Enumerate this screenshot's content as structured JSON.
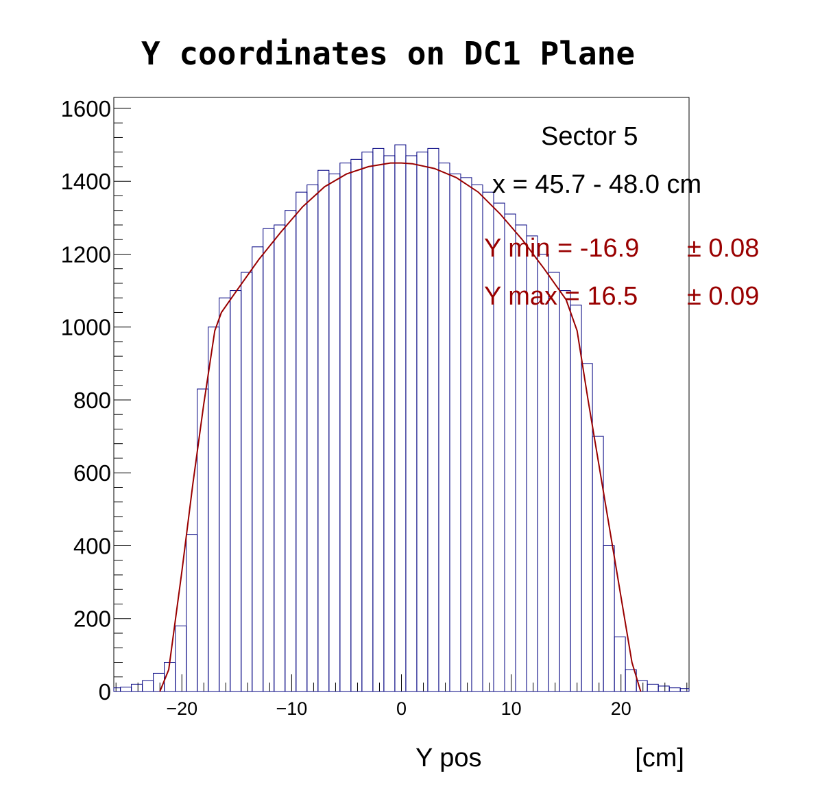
{
  "chart_data": {
    "type": "bar",
    "title": "Y coordinates on DC1 Plane",
    "xlabel": "Y pos",
    "xunit": "[cm]",
    "ylabel": "",
    "xlim": [
      -26.2,
      26.2
    ],
    "ylim": [
      0,
      1630
    ],
    "x_ticks": [
      -20,
      -10,
      0,
      10,
      20
    ],
    "x_tick_labels": [
      "−20",
      "−10",
      "0",
      "10",
      "20"
    ],
    "y_ticks": [
      0,
      200,
      400,
      600,
      800,
      1000,
      1200,
      1400,
      1600
    ],
    "y_tick_labels": [
      "0",
      "200",
      "400",
      "600",
      "800",
      "1000",
      "1200",
      "1400",
      "1600"
    ],
    "grid": false,
    "histogram": {
      "bin_width": 0.2,
      "color": "#000080",
      "x": [
        -26.1,
        -25.1,
        -24.1,
        -23.1,
        -22.1,
        -21.1,
        -20.1,
        -19.1,
        -18.1,
        -17.1,
        -16.1,
        -15.1,
        -14.1,
        -13.1,
        -12.1,
        -11.1,
        -10.1,
        -9.1,
        -8.1,
        -7.1,
        -6.1,
        -5.1,
        -4.1,
        -3.1,
        -2.1,
        -1.1,
        -0.1,
        0.9,
        1.9,
        2.9,
        3.9,
        4.9,
        5.9,
        6.9,
        7.9,
        8.9,
        9.9,
        10.9,
        11.9,
        12.9,
        13.9,
        14.9,
        15.9,
        16.9,
        17.9,
        18.9,
        19.9,
        20.9,
        21.9,
        22.9,
        23.9,
        24.9,
        25.9
      ],
      "values": [
        10,
        12,
        20,
        30,
        50,
        80,
        180,
        430,
        830,
        1000,
        1080,
        1100,
        1150,
        1220,
        1270,
        1280,
        1320,
        1370,
        1390,
        1430,
        1420,
        1450,
        1460,
        1480,
        1490,
        1470,
        1500,
        1470,
        1480,
        1490,
        1450,
        1420,
        1410,
        1390,
        1370,
        1340,
        1310,
        1280,
        1250,
        1200,
        1150,
        1100,
        1060,
        900,
        700,
        400,
        150,
        60,
        30,
        20,
        15,
        10,
        8
      ]
    },
    "fit": {
      "color": "#990000",
      "x": [
        -22,
        -21.2,
        -20,
        -19,
        -18,
        -17,
        -16.4,
        -15,
        -13,
        -11,
        -9,
        -7,
        -5,
        -3,
        -1,
        0,
        1,
        3,
        5,
        7,
        9,
        11,
        13,
        15,
        16,
        17,
        18,
        19,
        20,
        21,
        21.8
      ],
      "y": [
        0,
        60,
        330,
        570,
        790,
        990,
        1040,
        1100,
        1185,
        1260,
        1330,
        1385,
        1420,
        1440,
        1450,
        1450,
        1448,
        1435,
        1410,
        1370,
        1310,
        1240,
        1160,
        1075,
        990,
        800,
        620,
        440,
        260,
        80,
        0
      ]
    }
  },
  "annotations": {
    "sector": "Sector 5",
    "x_range": "x = 45.7 - 48.0 cm",
    "ymin_label": "Y min = -16.9",
    "ymin_err": "± 0.08",
    "ymax_label": "Y max = 16.5",
    "ymax_err": "± 0.09"
  },
  "colors": {
    "histogram": "#000080",
    "fit": "#990000",
    "annotation_red": "#990000"
  }
}
